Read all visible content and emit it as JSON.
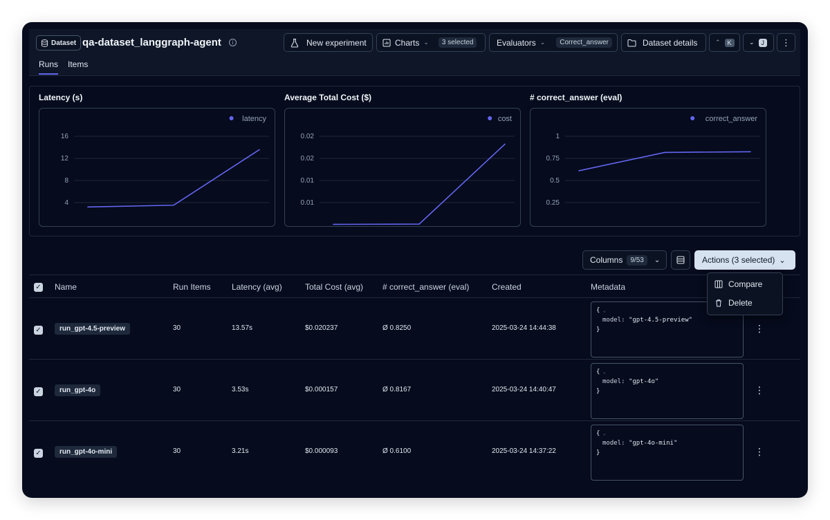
{
  "header": {
    "dataset_badge": "Dataset",
    "title": "qa-dataset_langgraph-agent",
    "new_experiment": "New experiment",
    "charts_label": "Charts",
    "charts_selected": "3 selected",
    "evaluators_label": "Evaluators",
    "evaluator_value": "Correct_answer",
    "dataset_details": "Dataset details",
    "kbd_up": "K",
    "kbd_down": "J"
  },
  "tabs": [
    {
      "label": "Runs",
      "active": true
    },
    {
      "label": "Items",
      "active": false
    }
  ],
  "charts": {
    "latency": {
      "title": "Latency (s)",
      "legend": "latency"
    },
    "cost": {
      "title": "Average Total Cost ($)",
      "legend": "cost"
    },
    "correct": {
      "title": "# correct_answer (eval)",
      "legend": "correct_answer"
    }
  },
  "chart_data": [
    {
      "type": "line",
      "title": "Latency (s)",
      "series": [
        {
          "name": "latency",
          "values": [
            3.21,
            3.53,
            13.57
          ]
        }
      ],
      "x": [
        "run_gpt-4o-mini",
        "run_gpt-4o",
        "run_gpt-4.5-preview"
      ],
      "yticks": [
        "16",
        "12",
        "8",
        "4"
      ],
      "ylim": [
        0,
        18
      ],
      "grid": true,
      "legend": "top-right",
      "color": "#6366f1"
    },
    {
      "type": "line",
      "title": "Average Total Cost ($)",
      "series": [
        {
          "name": "cost",
          "values": [
            9.3e-05,
            0.000157,
            0.020237
          ]
        }
      ],
      "x": [
        "run_gpt-4o-mini",
        "run_gpt-4o",
        "run_gpt-4.5-preview"
      ],
      "yticks": [
        "0.02",
        "0.02",
        "0.01",
        "0.01"
      ],
      "ylim": [
        0,
        0.025
      ],
      "grid": true,
      "legend": "top-right",
      "color": "#6366f1"
    },
    {
      "type": "line",
      "title": "# correct_answer (eval)",
      "series": [
        {
          "name": "correct_answer",
          "values": [
            0.61,
            0.8167,
            0.825
          ]
        }
      ],
      "x": [
        "run_gpt-4o-mini",
        "run_gpt-4o",
        "run_gpt-4.5-preview"
      ],
      "yticks": [
        "1",
        "0.75",
        "0.5",
        "0.25"
      ],
      "ylim": [
        0,
        1.125
      ],
      "grid": true,
      "legend": "top-right",
      "color": "#6366f1"
    }
  ],
  "toolbar": {
    "columns_label": "Columns",
    "columns_count": "9/53",
    "actions_label": "Actions (3 selected)"
  },
  "dropdown": {
    "compare": "Compare",
    "delete": "Delete"
  },
  "table": {
    "headers": {
      "name": "Name",
      "run_items": "Run Items",
      "latency": "Latency (avg)",
      "cost": "Total Cost (avg)",
      "correct": "# correct_answer (eval)",
      "created": "Created",
      "metadata": "Metadata"
    },
    "rows": [
      {
        "name": "run_gpt-4.5-preview",
        "items": "30",
        "latency": "13.57s",
        "cost": "$0.020237",
        "correct": "Ø 0.8250",
        "created": "2025-03-24 14:44:38",
        "meta_key": "model:",
        "meta_val": "\"gpt-4.5-preview\""
      },
      {
        "name": "run_gpt-4o",
        "items": "30",
        "latency": "3.53s",
        "cost": "$0.000157",
        "correct": "Ø 0.8167",
        "created": "2025-03-24 14:40:47",
        "meta_key": "model:",
        "meta_val": "\"gpt-4o\""
      },
      {
        "name": "run_gpt-4o-mini",
        "items": "30",
        "latency": "3.21s",
        "cost": "$0.000093",
        "correct": "Ø 0.6100",
        "created": "2025-03-24 14:37:22",
        "meta_key": "model:",
        "meta_val": "\"gpt-4o-mini\""
      }
    ]
  }
}
